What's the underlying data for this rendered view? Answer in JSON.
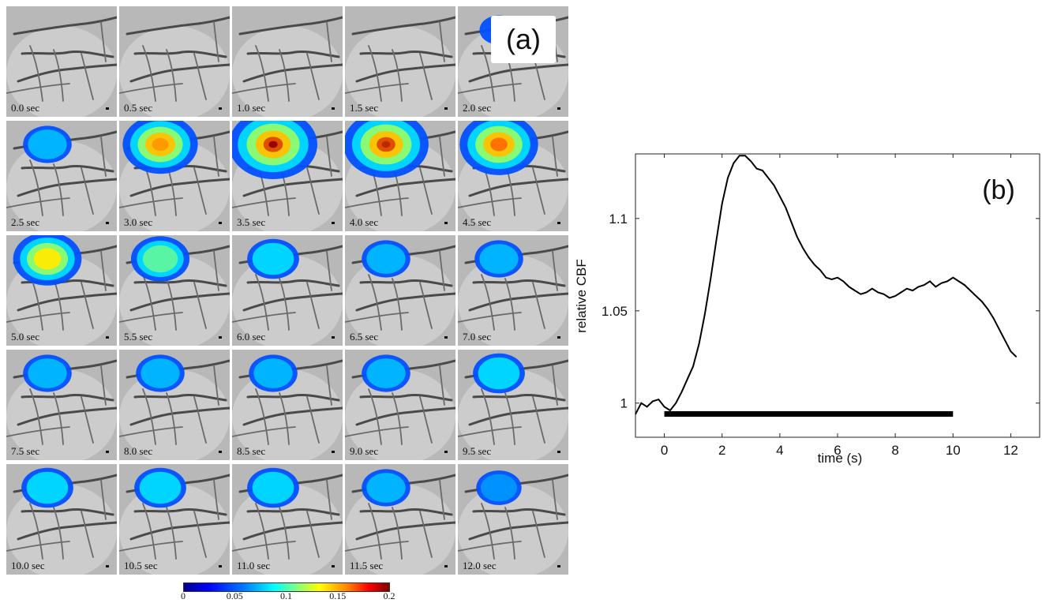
{
  "panel_a": {
    "label": "(a)",
    "frames": [
      {
        "time": "0.0 sec",
        "activation": 0.0
      },
      {
        "time": "0.5 sec",
        "activation": 0.0
      },
      {
        "time": "1.0 sec",
        "activation": 0.0
      },
      {
        "time": "1.5 sec",
        "activation": 0.0
      },
      {
        "time": "2.0 sec",
        "activation": 0.05
      },
      {
        "time": "2.5 sec",
        "activation": 0.08
      },
      {
        "time": "3.0 sec",
        "activation": 0.16
      },
      {
        "time": "3.5 sec",
        "activation": 0.2
      },
      {
        "time": "4.0 sec",
        "activation": 0.19
      },
      {
        "time": "4.5 sec",
        "activation": 0.17
      },
      {
        "time": "5.0 sec",
        "activation": 0.14
      },
      {
        "time": "5.5 sec",
        "activation": 0.11
      },
      {
        "time": "6.0 sec",
        "activation": 0.09
      },
      {
        "time": "6.5 sec",
        "activation": 0.08
      },
      {
        "time": "7.0 sec",
        "activation": 0.08
      },
      {
        "time": "7.5 sec",
        "activation": 0.08
      },
      {
        "time": "8.0 sec",
        "activation": 0.08
      },
      {
        "time": "8.5 sec",
        "activation": 0.08
      },
      {
        "time": "9.0 sec",
        "activation": 0.08
      },
      {
        "time": "9.5 sec",
        "activation": 0.09
      },
      {
        "time": "10.0 sec",
        "activation": 0.09
      },
      {
        "time": "10.5 sec",
        "activation": 0.09
      },
      {
        "time": "11.0 sec",
        "activation": 0.09
      },
      {
        "time": "11.5 sec",
        "activation": 0.08
      },
      {
        "time": "12.0 sec",
        "activation": 0.07
      }
    ],
    "colorbar": {
      "ticks": [
        "0",
        "0.05",
        "0.1",
        "0.15",
        "0.2"
      ],
      "range": [
        0,
        0.2
      ],
      "colormap": "jet"
    }
  },
  "chart_data": {
    "type": "line",
    "panel_label": "(b)",
    "xlabel": "time (s)",
    "ylabel": "relative CBF",
    "xlim": [
      -1,
      13
    ],
    "ylim": [
      0.9815,
      1.135
    ],
    "x_ticks": [
      0,
      2,
      4,
      6,
      8,
      10,
      12
    ],
    "y_ticks": [
      1,
      1.05,
      1.1
    ],
    "y_tick_labels": [
      "1",
      "1.05",
      "1.1"
    ],
    "stimulus_bar": {
      "start": 0,
      "end": 10
    },
    "line_color": "#000000",
    "series": [
      {
        "x": [
          -1.0,
          -0.8,
          -0.6,
          -0.4,
          -0.2,
          0.0,
          0.2,
          0.4,
          0.6,
          0.8,
          1.0,
          1.2,
          1.4,
          1.6,
          1.8,
          2.0,
          2.2,
          2.4,
          2.6,
          2.8,
          3.0,
          3.2,
          3.4,
          3.6,
          3.8,
          4.0,
          4.2,
          4.4,
          4.6,
          4.8,
          5.0,
          5.2,
          5.4,
          5.6,
          5.8,
          6.0,
          6.2,
          6.4,
          6.6,
          6.8,
          7.0,
          7.2,
          7.4,
          7.6,
          7.8,
          8.0,
          8.2,
          8.4,
          8.6,
          8.8,
          9.0,
          9.2,
          9.4,
          9.6,
          9.8,
          10.0,
          10.2,
          10.4,
          10.6,
          10.8,
          11.0,
          11.2,
          11.4,
          11.6,
          11.8,
          12.0,
          12.2
        ],
        "y": [
          0.994,
          1.0,
          0.998,
          1.001,
          1.002,
          0.998,
          0.996,
          1.0,
          1.006,
          1.013,
          1.02,
          1.032,
          1.048,
          1.067,
          1.088,
          1.108,
          1.122,
          1.13,
          1.134,
          1.134,
          1.131,
          1.127,
          1.126,
          1.122,
          1.118,
          1.112,
          1.106,
          1.098,
          1.09,
          1.084,
          1.079,
          1.075,
          1.072,
          1.068,
          1.067,
          1.068,
          1.066,
          1.063,
          1.061,
          1.059,
          1.06,
          1.062,
          1.06,
          1.059,
          1.057,
          1.058,
          1.06,
          1.062,
          1.061,
          1.063,
          1.064,
          1.066,
          1.063,
          1.065,
          1.066,
          1.068,
          1.066,
          1.064,
          1.061,
          1.058,
          1.055,
          1.051,
          1.046,
          1.04,
          1.034,
          1.028,
          1.025
        ]
      }
    ]
  }
}
